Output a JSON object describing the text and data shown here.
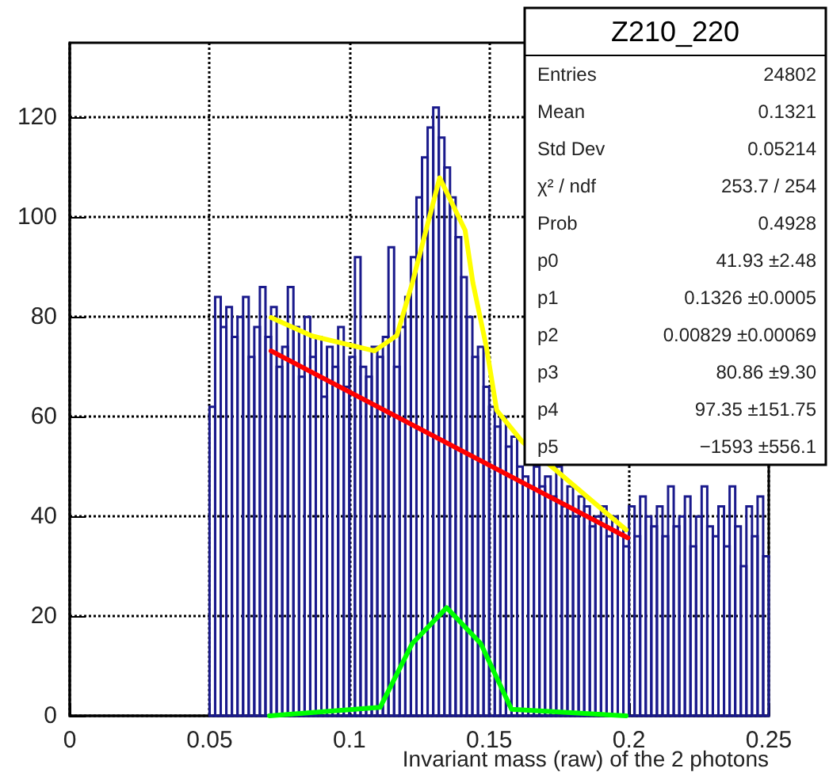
{
  "chart_data": {
    "type": "histogram",
    "xlabel": "Invariant mass (raw) of the 2 photons",
    "bins": [
      0.05,
      0.052,
      0.054,
      0.056,
      0.058,
      0.06,
      0.062,
      0.064,
      0.066,
      0.068,
      0.07,
      0.072,
      0.074,
      0.076,
      0.078,
      0.08,
      0.082,
      0.084,
      0.086,
      0.088,
      0.09,
      0.092,
      0.094,
      0.096,
      0.098,
      0.1,
      0.102,
      0.104,
      0.106,
      0.108,
      0.11,
      0.112,
      0.114,
      0.116,
      0.118,
      0.12,
      0.122,
      0.124,
      0.126,
      0.128,
      0.13,
      0.132,
      0.134,
      0.136,
      0.138,
      0.14,
      0.142,
      0.144,
      0.146,
      0.148,
      0.15,
      0.152,
      0.154,
      0.156,
      0.158,
      0.16,
      0.162,
      0.164,
      0.166,
      0.168,
      0.17,
      0.172,
      0.174,
      0.176,
      0.178,
      0.18,
      0.182,
      0.184,
      0.186,
      0.188,
      0.19,
      0.192,
      0.194,
      0.196,
      0.198,
      0.2,
      0.202,
      0.204,
      0.206,
      0.208,
      0.21,
      0.212,
      0.214,
      0.216,
      0.218,
      0.22,
      0.222,
      0.224,
      0.226,
      0.228,
      0.23,
      0.232,
      0.234,
      0.236,
      0.238,
      0.24,
      0.242,
      0.244,
      0.246,
      0.248,
      0.25
    ],
    "values": [
      62,
      84,
      78,
      82,
      76,
      80,
      84,
      72,
      78,
      86,
      76,
      82,
      70,
      74,
      86,
      78,
      68,
      80,
      72,
      76,
      64,
      74,
      70,
      78,
      66,
      72,
      92,
      70,
      68,
      74,
      72,
      76,
      94,
      70,
      78,
      84,
      92,
      104,
      112,
      118,
      122,
      116,
      110,
      104,
      96,
      88,
      80,
      72,
      74,
      66,
      62,
      58,
      60,
      54,
      56,
      50,
      48,
      46,
      50,
      46,
      48,
      44,
      50,
      42,
      46,
      40,
      44,
      42,
      38,
      40,
      42,
      36,
      40,
      38,
      34,
      42,
      36,
      44,
      40,
      38,
      42,
      36,
      46,
      38,
      40,
      44,
      34,
      40,
      46,
      38,
      36,
      42,
      34,
      46,
      38,
      30,
      42,
      36,
      44,
      32
    ],
    "color": "#1a1a8c",
    "series": [
      {
        "type": "line",
        "color": "#ffff00",
        "x": [
          0.072,
          0.0866,
          0.109,
          0.117,
          0.1225,
          0.1323,
          0.1414,
          0.1442,
          0.149,
          0.1527,
          0.162,
          0.199
        ],
        "values": [
          79.9,
          76.2,
          73.2,
          76.3,
          86.8,
          107.9,
          97.4,
          86.8,
          74,
          61.3,
          54.9,
          37.3
        ]
      },
      {
        "type": "line",
        "color": "#ff0000",
        "x": [
          0.072,
          0.1996
        ],
        "values": [
          73.2,
          35.7
        ]
      },
      {
        "type": "line",
        "color": "#00ff00",
        "x": [
          0.0714,
          0.111,
          0.1225,
          0.1348,
          0.147,
          0.158,
          0.199
        ],
        "values": [
          0,
          1.7,
          14.5,
          21.7,
          14.5,
          1.3,
          0
        ]
      }
    ],
    "xlim": [
      0,
      0.25
    ],
    "xticks": [
      0,
      0.05,
      0.1,
      0.15,
      0.2,
      0.25
    ],
    "ylim": [
      0,
      135
    ],
    "yticks": [
      0,
      20,
      40,
      60,
      80,
      100,
      120
    ],
    "grid": true,
    "marker": "none",
    "line_style": "solid",
    "legend": false,
    "annotations": [
      "Z210_220",
      "Entries",
      "24802",
      "Mean",
      "0.1321",
      "Std Dev",
      "0.05214",
      "χ² / ndf",
      "253.7 / 254",
      "Prob",
      "0.4928",
      "p0",
      "41.93 ±2.48",
      "p1",
      "0.1326 ±0.0005",
      "p2",
      "0.00829 ±0.00069",
      "p3",
      "80.86 ±9.30",
      "p4",
      "97.35 ±151.75",
      "p5",
      "−1593 ±556.1"
    ]
  }
}
